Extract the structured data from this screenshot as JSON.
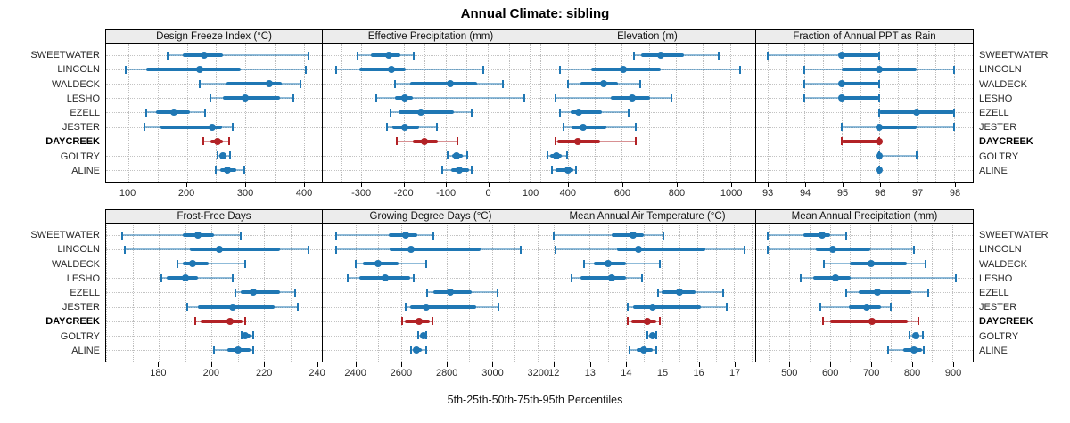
{
  "title": "Annual Climate: sibling",
  "caption": "5th-25th-50th-75th-95th Percentiles",
  "sites": [
    "SWEETWATER",
    "LINCOLN",
    "WALDECK",
    "LESHO",
    "EZELL",
    "JESTER",
    "DAYCREEK",
    "GOLTRY",
    "ALINE"
  ],
  "highlight_site": "DAYCREEK",
  "percentile_labels": [
    "5th",
    "25th",
    "50th",
    "75th",
    "95th"
  ],
  "colors": {
    "series": "#1f77b4",
    "highlight": "#b22226",
    "grid": "#c3c3c3",
    "header_bg": "#ececec",
    "border": "#000000"
  },
  "chart_data": [
    {
      "type": "dotplot-percentiles",
      "title": "Design Freeze Index (°C)",
      "row": 0,
      "col": 0,
      "xlim": [
        62,
        431
      ],
      "ticks": [
        100,
        200,
        300,
        400
      ],
      "grid_step": 50,
      "series": [
        {
          "name": "SWEETWATER",
          "percentiles": [
            167,
            193,
            230,
            262,
            408
          ]
        },
        {
          "name": "LINCOLN",
          "percentiles": [
            95,
            130,
            222,
            292,
            403
          ]
        },
        {
          "name": "WALDECK",
          "percentiles": [
            222,
            268,
            341,
            362,
            395
          ]
        },
        {
          "name": "LESHO",
          "percentiles": [
            240,
            262,
            300,
            360,
            382
          ]
        },
        {
          "name": "EZELL",
          "percentiles": [
            130,
            148,
            178,
            205,
            232
          ]
        },
        {
          "name": "JESTER",
          "percentiles": [
            127,
            155,
            243,
            260,
            278
          ]
        },
        {
          "name": "DAYCREEK",
          "percentiles": [
            228,
            240,
            253,
            262,
            272
          ]
        },
        {
          "name": "GOLTRY",
          "percentiles": [
            252,
            256,
            262,
            267,
            274
          ]
        },
        {
          "name": "ALINE",
          "percentiles": [
            250,
            257,
            270,
            284,
            298
          ]
        }
      ]
    },
    {
      "type": "dotplot-percentiles",
      "title": "Effective Precipitation (mm)",
      "row": 0,
      "col": 1,
      "xlim": [
        -392,
        121
      ],
      "ticks": [
        -300,
        -200,
        -100,
        0,
        100
      ],
      "grid_step": 50,
      "series": [
        {
          "name": "SWEETWATER",
          "percentiles": [
            -310,
            -277,
            -235,
            -207,
            -175
          ]
        },
        {
          "name": "LINCOLN",
          "percentiles": [
            -360,
            -305,
            -228,
            -194,
            -10
          ]
        },
        {
          "name": "WALDECK",
          "percentiles": [
            -220,
            -185,
            -88,
            -25,
            36
          ]
        },
        {
          "name": "LESHO",
          "percentiles": [
            -265,
            -221,
            -197,
            -177,
            87
          ]
        },
        {
          "name": "EZELL",
          "percentiles": [
            -231,
            -212,
            -159,
            -81,
            -37
          ]
        },
        {
          "name": "JESTER",
          "percentiles": [
            -240,
            -226,
            -197,
            -163,
            -120
          ]
        },
        {
          "name": "DAYCREEK",
          "percentiles": [
            -217,
            -177,
            -150,
            -118,
            -72
          ]
        },
        {
          "name": "GOLTRY",
          "percentiles": [
            -95,
            -84,
            -73,
            -60,
            -48
          ]
        },
        {
          "name": "ALINE",
          "percentiles": [
            -107,
            -87,
            -68,
            -45,
            -38
          ]
        }
      ]
    },
    {
      "type": "dotplot-percentiles",
      "title": "Elevation (m)",
      "row": 0,
      "col": 2,
      "xlim": [
        296,
        1093
      ],
      "ticks": [
        400,
        600,
        800,
        1000
      ],
      "grid_step": 100,
      "series": [
        {
          "name": "SWEETWATER",
          "percentiles": [
            645,
            673,
            744,
            831,
            958
          ]
        },
        {
          "name": "LINCOLN",
          "percentiles": [
            371,
            487,
            604,
            744,
            1038
          ]
        },
        {
          "name": "WALDECK",
          "percentiles": [
            400,
            449,
            534,
            586,
            668
          ]
        },
        {
          "name": "LESHO",
          "percentiles": [
            356,
            558,
            640,
            706,
            782
          ]
        },
        {
          "name": "EZELL",
          "percentiles": [
            372,
            411,
            441,
            526,
            624
          ]
        },
        {
          "name": "JESTER",
          "percentiles": [
            384,
            416,
            458,
            542,
            651
          ]
        },
        {
          "name": "DAYCREEK",
          "percentiles": [
            354,
            363,
            436,
            520,
            653
          ]
        },
        {
          "name": "GOLTRY",
          "percentiles": [
            327,
            334,
            358,
            378,
            398
          ]
        },
        {
          "name": "ALINE",
          "percentiles": [
            343,
            356,
            400,
            420,
            430
          ]
        }
      ]
    },
    {
      "type": "dotplot-percentiles",
      "title": "Fraction of Annual PPT as Rain",
      "row": 0,
      "col": 3,
      "xlim": [
        92.7,
        98.5
      ],
      "ticks": [
        93,
        94,
        95,
        96,
        97,
        98
      ],
      "grid_step": 0.5,
      "series": [
        {
          "name": "SWEETWATER",
          "percentiles": [
            93,
            95,
            95,
            96,
            96
          ]
        },
        {
          "name": "LINCOLN",
          "percentiles": [
            94,
            95,
            96,
            97,
            98
          ]
        },
        {
          "name": "WALDECK",
          "percentiles": [
            94,
            95,
            95,
            96,
            96
          ]
        },
        {
          "name": "LESHO",
          "percentiles": [
            94,
            95,
            95,
            96,
            96
          ]
        },
        {
          "name": "EZELL",
          "percentiles": [
            96,
            96,
            97,
            98,
            98
          ]
        },
        {
          "name": "JESTER",
          "percentiles": [
            95,
            96,
            96,
            97,
            98
          ]
        },
        {
          "name": "DAYCREEK",
          "percentiles": [
            95,
            95,
            96,
            96,
            96
          ]
        },
        {
          "name": "GOLTRY",
          "percentiles": [
            96,
            96,
            96,
            96,
            97
          ]
        },
        {
          "name": "ALINE",
          "percentiles": [
            96,
            96,
            96,
            96,
            96
          ]
        }
      ]
    },
    {
      "type": "dotplot-percentiles",
      "title": "Frost-Free Days",
      "row": 1,
      "col": 0,
      "xlim": [
        160,
        242
      ],
      "ticks": [
        180,
        200,
        220,
        240
      ],
      "grid_step": 10,
      "series": [
        {
          "name": "SWEETWATER",
          "percentiles": [
            166,
            189,
            195,
            201,
            211
          ]
        },
        {
          "name": "LINCOLN",
          "percentiles": [
            167,
            192,
            203,
            226,
            237
          ]
        },
        {
          "name": "WALDECK",
          "percentiles": [
            187,
            189,
            193,
            199,
            213
          ]
        },
        {
          "name": "LESHO",
          "percentiles": [
            181,
            183,
            190,
            195,
            208
          ]
        },
        {
          "name": "EZELL",
          "percentiles": [
            209,
            211,
            216,
            226,
            232
          ]
        },
        {
          "name": "JESTER",
          "percentiles": [
            191,
            195,
            208,
            224,
            233
          ]
        },
        {
          "name": "DAYCREEK",
          "percentiles": [
            194,
            196,
            207,
            212,
            213
          ]
        },
        {
          "name": "GOLTRY",
          "percentiles": [
            211.5,
            212,
            213,
            215,
            216
          ]
        },
        {
          "name": "ALINE",
          "percentiles": [
            201,
            206,
            210,
            215,
            216
          ]
        }
      ]
    },
    {
      "type": "dotplot-percentiles",
      "title": "Growing Degree Days (°C)",
      "row": 1,
      "col": 1,
      "xlim": [
        2255,
        3205
      ],
      "ticks": [
        2400,
        2600,
        2800,
        3000,
        3200
      ],
      "grid_step": 100,
      "series": [
        {
          "name": "SWEETWATER",
          "percentiles": [
            2315,
            2545,
            2620,
            2670,
            2740
          ]
        },
        {
          "name": "LINCOLN",
          "percentiles": [
            2315,
            2550,
            2645,
            2950,
            3125
          ]
        },
        {
          "name": "WALDECK",
          "percentiles": [
            2400,
            2430,
            2500,
            2590,
            2710
          ]
        },
        {
          "name": "LESHO",
          "percentiles": [
            2365,
            2415,
            2530,
            2640,
            2655
          ]
        },
        {
          "name": "EZELL",
          "percentiles": [
            2715,
            2740,
            2815,
            2910,
            3025
          ]
        },
        {
          "name": "JESTER",
          "percentiles": [
            2620,
            2640,
            2710,
            2930,
            3030
          ]
        },
        {
          "name": "DAYCREEK",
          "percentiles": [
            2605,
            2615,
            2680,
            2725,
            2737
          ]
        },
        {
          "name": "GOLTRY",
          "percentiles": [
            2675,
            2685,
            2697,
            2706,
            2712
          ]
        },
        {
          "name": "ALINE",
          "percentiles": [
            2645,
            2657,
            2668,
            2690,
            2710
          ]
        }
      ]
    },
    {
      "type": "dotplot-percentiles",
      "title": "Mean Annual Air Temperature (°C)",
      "row": 1,
      "col": 2,
      "xlim": [
        11.6,
        17.6
      ],
      "ticks": [
        12,
        13,
        14,
        15,
        16,
        17
      ],
      "grid_step": 0.5,
      "series": [
        {
          "name": "SWEETWATER",
          "percentiles": [
            12.0,
            13.6,
            14.2,
            14.5,
            15.05
          ]
        },
        {
          "name": "LINCOLN",
          "percentiles": [
            12.05,
            13.75,
            14.35,
            16.2,
            17.3
          ]
        },
        {
          "name": "WALDECK",
          "percentiles": [
            12.85,
            13.1,
            13.5,
            14.0,
            14.95
          ]
        },
        {
          "name": "LESHO",
          "percentiles": [
            12.5,
            12.75,
            13.6,
            14.0,
            14.45
          ]
        },
        {
          "name": "EZELL",
          "percentiles": [
            14.9,
            15.0,
            15.5,
            15.95,
            16.7
          ]
        },
        {
          "name": "JESTER",
          "percentiles": [
            14.05,
            14.2,
            14.75,
            16.1,
            16.8
          ]
        },
        {
          "name": "DAYCREEK",
          "percentiles": [
            14.05,
            14.15,
            14.6,
            14.85,
            14.95
          ]
        },
        {
          "name": "GOLTRY",
          "percentiles": [
            14.6,
            14.7,
            14.75,
            14.8,
            14.85
          ]
        },
        {
          "name": "ALINE",
          "percentiles": [
            14.1,
            14.3,
            14.5,
            14.75,
            14.85
          ]
        }
      ]
    },
    {
      "type": "dotplot-percentiles",
      "title": "Mean Annual Precipitation (mm)",
      "row": 1,
      "col": 3,
      "xlim": [
        420,
        950
      ],
      "ticks": [
        500,
        600,
        700,
        800,
        900
      ],
      "grid_step": 50,
      "series": [
        {
          "name": "SWEETWATER",
          "percentiles": [
            448,
            536,
            581,
            601,
            641
          ]
        },
        {
          "name": "LINCOLN",
          "percentiles": [
            448,
            566,
            607,
            699,
            806
          ]
        },
        {
          "name": "WALDECK",
          "percentiles": [
            585,
            650,
            702,
            788,
            835
          ]
        },
        {
          "name": "LESHO",
          "percentiles": [
            528,
            560,
            615,
            652,
            908
          ]
        },
        {
          "name": "EZELL",
          "percentiles": [
            640,
            670,
            716,
            800,
            840
          ]
        },
        {
          "name": "JESTER",
          "percentiles": [
            578,
            646,
            690,
            725,
            750
          ]
        },
        {
          "name": "DAYCREEK",
          "percentiles": [
            583,
            600,
            703,
            790,
            817
          ]
        },
        {
          "name": "GOLTRY",
          "percentiles": [
            796,
            803,
            810,
            820,
            828
          ]
        },
        {
          "name": "ALINE",
          "percentiles": [
            743,
            780,
            806,
            825,
            830
          ]
        }
      ]
    }
  ]
}
